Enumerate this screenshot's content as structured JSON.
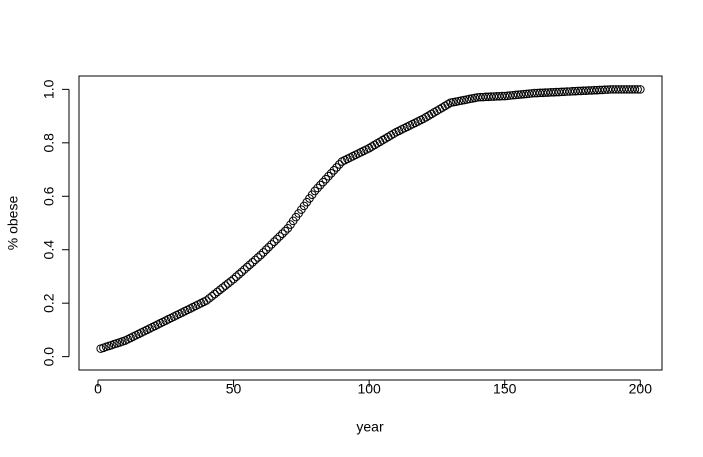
{
  "chart_data": {
    "type": "scatter",
    "x_label": "year",
    "y_label": "% obese",
    "x": [
      1,
      2,
      3,
      4,
      5,
      6,
      7,
      8,
      9,
      10,
      11,
      12,
      13,
      14,
      15,
      16,
      17,
      18,
      19,
      20,
      21,
      22,
      23,
      24,
      25,
      26,
      27,
      28,
      29,
      30,
      31,
      32,
      33,
      34,
      35,
      36,
      37,
      38,
      39,
      40,
      41,
      42,
      43,
      44,
      45,
      46,
      47,
      48,
      49,
      50,
      51,
      52,
      53,
      54,
      55,
      56,
      57,
      58,
      59,
      60,
      61,
      62,
      63,
      64,
      65,
      66,
      67,
      68,
      69,
      70,
      71,
      72,
      73,
      74,
      75,
      76,
      77,
      78,
      79,
      80,
      81,
      82,
      83,
      84,
      85,
      86,
      87,
      88,
      89,
      90,
      91,
      92,
      93,
      94,
      95,
      96,
      97,
      98,
      99,
      100,
      101,
      102,
      103,
      104,
      105,
      106,
      107,
      108,
      109,
      110,
      111,
      112,
      113,
      114,
      115,
      116,
      117,
      118,
      119,
      120,
      121,
      122,
      123,
      124,
      125,
      126,
      127,
      128,
      129,
      130,
      131,
      132,
      133,
      134,
      135,
      136,
      137,
      138,
      139,
      140,
      141,
      142,
      143,
      144,
      145,
      146,
      147,
      148,
      149,
      150,
      151,
      152,
      153,
      154,
      155,
      156,
      157,
      158,
      159,
      160,
      161,
      162,
      163,
      164,
      165,
      166,
      167,
      168,
      169,
      170,
      171,
      172,
      173,
      174,
      175,
      176,
      177,
      178,
      179,
      180,
      181,
      182,
      183,
      184,
      185,
      186,
      187,
      188,
      189,
      190,
      191,
      192,
      193,
      194,
      195,
      196,
      197,
      198,
      199,
      200
    ],
    "values": [
      0.03,
      0.033,
      0.037,
      0.04,
      0.043,
      0.047,
      0.05,
      0.053,
      0.057,
      0.06,
      0.065,
      0.07,
      0.075,
      0.08,
      0.085,
      0.09,
      0.095,
      0.1,
      0.105,
      0.11,
      0.115,
      0.12,
      0.125,
      0.13,
      0.135,
      0.14,
      0.145,
      0.15,
      0.155,
      0.16,
      0.165,
      0.17,
      0.175,
      0.18,
      0.185,
      0.19,
      0.195,
      0.2,
      0.205,
      0.21,
      0.218,
      0.226,
      0.234,
      0.242,
      0.25,
      0.258,
      0.266,
      0.274,
      0.282,
      0.29,
      0.299,
      0.308,
      0.317,
      0.326,
      0.335,
      0.344,
      0.353,
      0.362,
      0.371,
      0.38,
      0.39,
      0.4,
      0.41,
      0.42,
      0.43,
      0.44,
      0.45,
      0.46,
      0.47,
      0.48,
      0.494,
      0.508,
      0.522,
      0.536,
      0.55,
      0.564,
      0.578,
      0.592,
      0.606,
      0.62,
      0.631,
      0.642,
      0.653,
      0.664,
      0.675,
      0.686,
      0.697,
      0.708,
      0.719,
      0.73,
      0.735,
      0.74,
      0.745,
      0.75,
      0.755,
      0.76,
      0.765,
      0.77,
      0.775,
      0.78,
      0.786,
      0.792,
      0.798,
      0.804,
      0.81,
      0.816,
      0.822,
      0.828,
      0.834,
      0.84,
      0.845,
      0.85,
      0.855,
      0.86,
      0.865,
      0.87,
      0.875,
      0.88,
      0.885,
      0.89,
      0.896,
      0.902,
      0.908,
      0.914,
      0.92,
      0.926,
      0.932,
      0.938,
      0.944,
      0.95,
      0.952,
      0.954,
      0.956,
      0.958,
      0.96,
      0.962,
      0.964,
      0.966,
      0.968,
      0.97,
      0.971,
      0.971,
      0.972,
      0.972,
      0.973,
      0.973,
      0.974,
      0.974,
      0.975,
      0.975,
      0.976,
      0.977,
      0.978,
      0.979,
      0.98,
      0.981,
      0.982,
      0.983,
      0.984,
      0.985,
      0.986,
      0.986,
      0.987,
      0.987,
      0.988,
      0.988,
      0.989,
      0.989,
      0.99,
      0.99,
      0.991,
      0.991,
      0.992,
      0.992,
      0.993,
      0.993,
      0.994,
      0.994,
      0.995,
      0.995,
      0.996,
      0.996,
      0.997,
      0.997,
      0.998,
      0.998,
      0.999,
      0.999,
      1.0,
      1.0,
      1.0,
      1.0,
      1.0,
      1.0,
      1.0,
      1.0,
      1.0,
      1.0,
      1.0,
      1.0
    ],
    "color": "#000000",
    "xlim": [
      -7,
      208
    ],
    "ylim": [
      -0.05,
      1.05
    ],
    "xticks": [
      0,
      50,
      100,
      150,
      200
    ],
    "yticks": [
      {
        "value": 0,
        "label": "0.0"
      },
      0.2,
      0.4,
      0.6,
      0.8,
      {
        "value": 1,
        "label": "1.0"
      }
    ]
  }
}
